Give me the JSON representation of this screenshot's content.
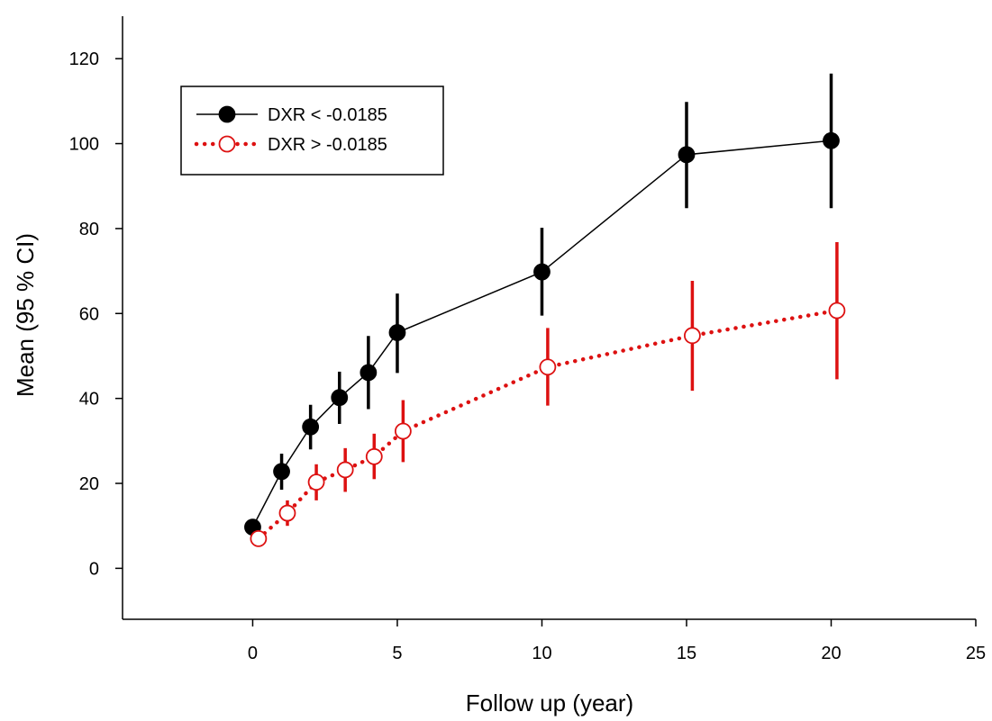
{
  "chart_data": {
    "type": "line",
    "title": "",
    "xlabel": "Follow up (year)",
    "ylabel": "Mean (95 % CI)",
    "xlim": [
      -4.5,
      25
    ],
    "ylim": [
      -12,
      130
    ],
    "x_ticks": [
      0,
      5,
      10,
      15,
      20,
      25
    ],
    "y_ticks": [
      0,
      20,
      40,
      60,
      80,
      100,
      120
    ],
    "grid": false,
    "legend_position": "top-left",
    "series": [
      {
        "name": "DXR < -0.0185",
        "color": "#000000",
        "line_style": "solid",
        "marker": "filled-circle",
        "points": [
          {
            "x": 0,
            "y": 9.7,
            "lo": 8.0,
            "hi": 11.5
          },
          {
            "x": 1,
            "y": 22.8,
            "lo": 18.5,
            "hi": 27.0
          },
          {
            "x": 2,
            "y": 33.3,
            "lo": 28.0,
            "hi": 38.5
          },
          {
            "x": 3,
            "y": 40.2,
            "lo": 34.0,
            "hi": 46.3
          },
          {
            "x": 4,
            "y": 46.1,
            "lo": 37.5,
            "hi": 54.7
          },
          {
            "x": 5,
            "y": 55.5,
            "lo": 46.0,
            "hi": 64.7
          },
          {
            "x": 10,
            "y": 69.8,
            "lo": 59.5,
            "hi": 80.2
          },
          {
            "x": 15,
            "y": 97.4,
            "lo": 84.8,
            "hi": 109.8
          },
          {
            "x": 20,
            "y": 100.7,
            "lo": 84.8,
            "hi": 116.5
          }
        ]
      },
      {
        "name": "DXR > -0.0185",
        "color": "#dd1111",
        "line_style": "dotted",
        "marker": "open-circle",
        "points": [
          {
            "x": 0.2,
            "y": 7.0,
            "lo": 5.5,
            "hi": 8.5
          },
          {
            "x": 1.2,
            "y": 13.0,
            "lo": 10.0,
            "hi": 16.0
          },
          {
            "x": 2.2,
            "y": 20.3,
            "lo": 16.0,
            "hi": 24.5
          },
          {
            "x": 3.2,
            "y": 23.2,
            "lo": 18.0,
            "hi": 28.3
          },
          {
            "x": 4.2,
            "y": 26.3,
            "lo": 21.0,
            "hi": 31.7
          },
          {
            "x": 5.2,
            "y": 32.3,
            "lo": 25.0,
            "hi": 39.6
          },
          {
            "x": 10.2,
            "y": 47.4,
            "lo": 38.3,
            "hi": 56.6
          },
          {
            "x": 15.2,
            "y": 54.8,
            "lo": 41.8,
            "hi": 67.7
          },
          {
            "x": 20.2,
            "y": 60.7,
            "lo": 44.5,
            "hi": 76.8
          }
        ]
      }
    ]
  }
}
